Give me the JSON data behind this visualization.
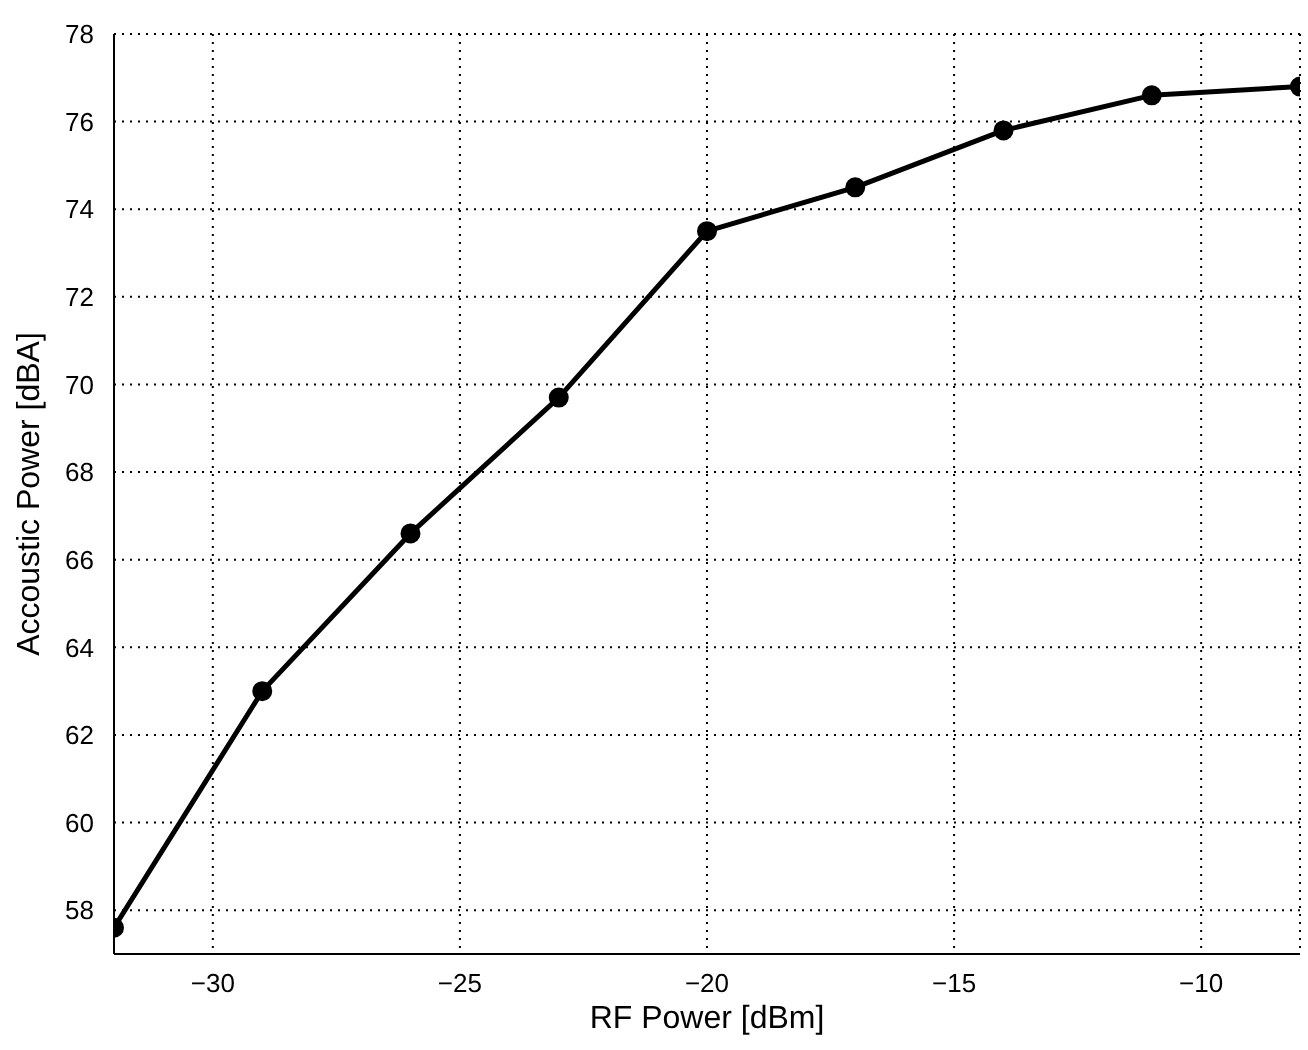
{
  "chart_data": {
    "type": "line",
    "xlabel": "RF Power [dBm]",
    "ylabel": "Accoustic Power [dBA]",
    "x": [
      -32,
      -29,
      -26,
      -23,
      -20,
      -17,
      -14,
      -11,
      -8
    ],
    "series": [
      {
        "color": "#000000",
        "values": [
          57.6,
          63.0,
          66.6,
          69.7,
          73.5,
          74.5,
          75.8,
          76.6,
          76.8
        ]
      }
    ],
    "xlim": [
      -32,
      -8
    ],
    "xticks": [
      -30,
      -25,
      -20,
      -15,
      -10
    ],
    "ylim": [
      57,
      78
    ],
    "yticks": [
      58,
      60,
      62,
      64,
      66,
      68,
      70,
      72,
      74,
      76,
      78
    ],
    "grid": true,
    "marker": "circle",
    "line_style": "solid"
  }
}
